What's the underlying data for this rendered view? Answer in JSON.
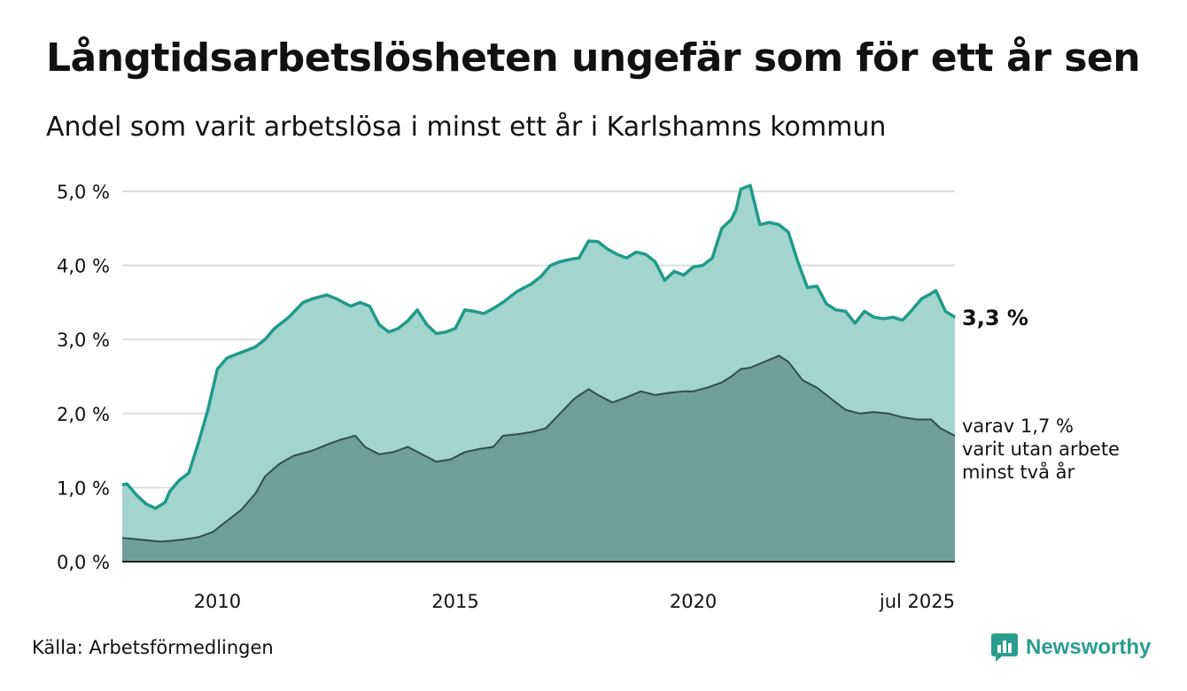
{
  "title": "Långtidsarbetslösheten ungefär som för ett år sen",
  "subtitle": "Andel som varit arbetslösa i minst ett år i Karlshamns kommun",
  "source": "Källa: Arbetsförmedlingen",
  "logo_text": "Newsworthy",
  "end_label_main": "3,3 %",
  "end_label_sub": [
    "varav 1,7 %",
    "varit utan arbete",
    "minst två år"
  ],
  "colors": {
    "main_line": "#1f9a8a",
    "main_fill": "#a3d4cf",
    "sub_line": "#2f4f4a",
    "sub_fill": "#6f9f98",
    "grid": "#dddddd",
    "logo": "#2a9d8f"
  },
  "chart_data": {
    "type": "area",
    "x_unit": "year",
    "xlim": [
      2008.0,
      2025.5
    ],
    "ylim": [
      0,
      5
    ],
    "y_tick_values": [
      0,
      1,
      2,
      3,
      4,
      5
    ],
    "y_tick_labels": [
      "0,0 %",
      "1,0 %",
      "2,0 %",
      "3,0 %",
      "4,0 %",
      "5,0 %"
    ],
    "x_tick_values": [
      2010,
      2015,
      2020,
      2025.5
    ],
    "x_tick_labels": [
      "2010",
      "2015",
      "2020",
      "jul 2025"
    ],
    "grid": true,
    "series": [
      {
        "x": [
          2008.0,
          2008.1,
          2008.3,
          2008.5,
          2008.7,
          2008.9,
          2009.0,
          2009.2,
          2009.4,
          2009.6,
          2009.8,
          2010.0,
          2010.2,
          2010.4,
          2010.6,
          2010.8,
          2011.0,
          2011.2,
          2011.5,
          2011.8,
          2012.0,
          2012.3,
          2012.5,
          2012.8,
          2013.0,
          2013.2,
          2013.4,
          2013.6,
          2013.8,
          2014.0,
          2014.2,
          2014.4,
          2014.6,
          2014.8,
          2015.0,
          2015.2,
          2015.4,
          2015.6,
          2015.8,
          2016.0,
          2016.3,
          2016.6,
          2016.8,
          2017.0,
          2017.2,
          2017.4,
          2017.6,
          2017.8,
          2018.0,
          2018.2,
          2018.4,
          2018.6,
          2018.8,
          2019.0,
          2019.2,
          2019.4,
          2019.6,
          2019.8,
          2020.0,
          2020.2,
          2020.4,
          2020.6,
          2020.8,
          2020.9,
          2021.0,
          2021.2,
          2021.4,
          2021.6,
          2021.8,
          2022.0,
          2022.2,
          2022.4,
          2022.6,
          2022.8,
          2023.0,
          2023.2,
          2023.4,
          2023.6,
          2023.8,
          2024.0,
          2024.2,
          2024.4,
          2024.6,
          2024.8,
          2025.0,
          2025.1,
          2025.3,
          2025.5
        ],
        "values": [
          1.04,
          1.05,
          0.9,
          0.78,
          0.72,
          0.8,
          0.95,
          1.1,
          1.2,
          1.6,
          2.05,
          2.6,
          2.75,
          2.8,
          2.85,
          2.9,
          3.0,
          3.15,
          3.3,
          3.5,
          3.55,
          3.6,
          3.55,
          3.45,
          3.5,
          3.45,
          3.2,
          3.1,
          3.15,
          3.25,
          3.4,
          3.2,
          3.08,
          3.1,
          3.15,
          3.4,
          3.38,
          3.35,
          3.42,
          3.5,
          3.65,
          3.75,
          3.85,
          4.0,
          4.05,
          4.08,
          4.1,
          4.33,
          4.32,
          4.22,
          4.15,
          4.1,
          4.18,
          4.15,
          4.05,
          3.8,
          3.92,
          3.87,
          3.98,
          4.0,
          4.1,
          4.5,
          4.62,
          4.75,
          5.03,
          5.08,
          4.55,
          4.58,
          4.55,
          4.45,
          4.05,
          3.7,
          3.72,
          3.48,
          3.4,
          3.38,
          3.22,
          3.38,
          3.3,
          3.28,
          3.3,
          3.26,
          3.4,
          3.55,
          3.62,
          3.66,
          3.38,
          3.3
        ]
      },
      {
        "x": [
          2008.0,
          2008.2,
          2008.5,
          2008.8,
          2009.0,
          2009.3,
          2009.6,
          2009.9,
          2010.2,
          2010.5,
          2010.8,
          2011.0,
          2011.3,
          2011.6,
          2012.0,
          2012.3,
          2012.6,
          2012.9,
          2013.1,
          2013.4,
          2013.7,
          2014.0,
          2014.3,
          2014.6,
          2014.9,
          2015.2,
          2015.5,
          2015.8,
          2016.0,
          2016.3,
          2016.6,
          2016.9,
          2017.2,
          2017.5,
          2017.8,
          2018.0,
          2018.3,
          2018.6,
          2018.9,
          2019.2,
          2019.5,
          2019.8,
          2020.0,
          2020.3,
          2020.6,
          2020.8,
          2021.0,
          2021.2,
          2021.5,
          2021.8,
          2022.0,
          2022.3,
          2022.6,
          2022.9,
          2023.2,
          2023.5,
          2023.8,
          2024.1,
          2024.4,
          2024.7,
          2025.0,
          2025.2,
          2025.5
        ],
        "values": [
          0.32,
          0.31,
          0.29,
          0.27,
          0.28,
          0.3,
          0.33,
          0.4,
          0.55,
          0.7,
          0.92,
          1.15,
          1.32,
          1.43,
          1.5,
          1.58,
          1.65,
          1.7,
          1.55,
          1.45,
          1.48,
          1.55,
          1.45,
          1.35,
          1.38,
          1.48,
          1.52,
          1.55,
          1.7,
          1.72,
          1.75,
          1.8,
          2.0,
          2.2,
          2.33,
          2.25,
          2.15,
          2.22,
          2.3,
          2.25,
          2.28,
          2.3,
          2.3,
          2.35,
          2.42,
          2.5,
          2.6,
          2.62,
          2.7,
          2.78,
          2.7,
          2.45,
          2.35,
          2.2,
          2.05,
          2.0,
          2.02,
          2.0,
          1.95,
          1.92,
          1.92,
          1.8,
          1.7
        ]
      }
    ]
  }
}
